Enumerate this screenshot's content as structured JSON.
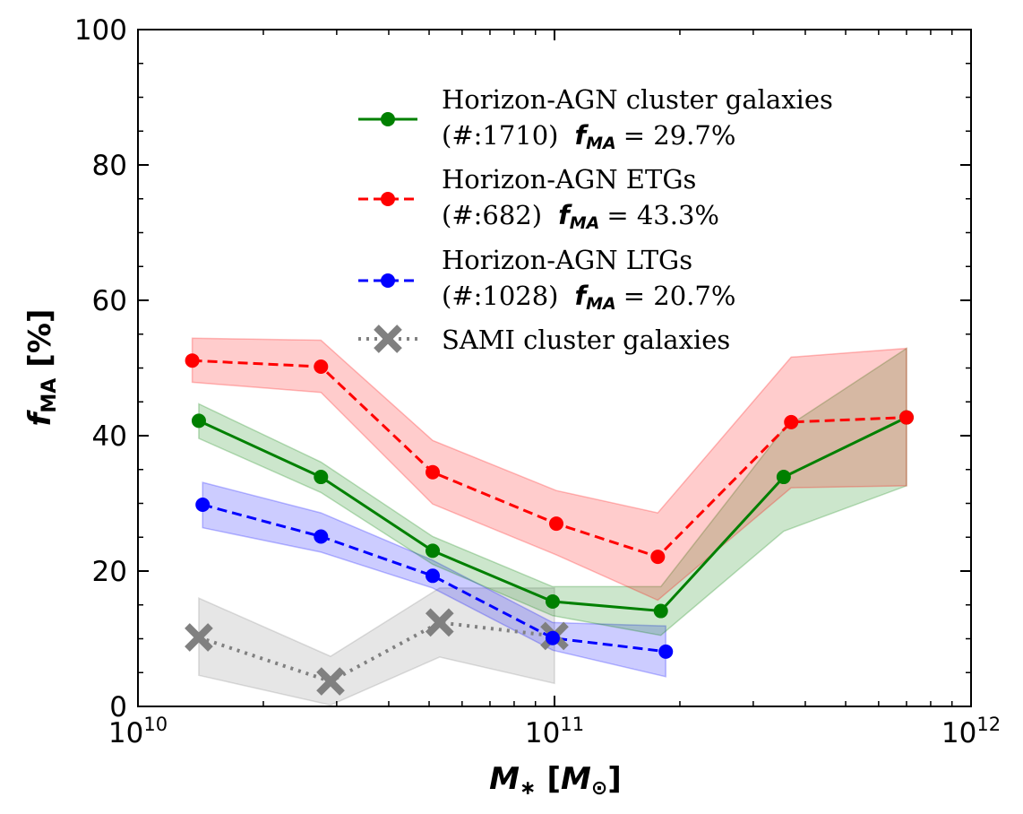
{
  "chart_data": {
    "type": "line",
    "xscale": "log",
    "xlim": [
      10000000000,
      1000000000000
    ],
    "ylim": [
      0,
      100
    ],
    "xlabel": {
      "main": "M",
      "sub1": "∗",
      "open": "[",
      "unit": "M",
      "sub2": "⊙",
      "close": "]"
    },
    "ylabel": {
      "main": "f",
      "sub": "MA",
      "unit": "[%]"
    },
    "x_ticks": [
      {
        "value": 10000000000,
        "base": "10",
        "exp": "10"
      },
      {
        "value": 100000000000,
        "base": "10",
        "exp": "11"
      },
      {
        "value": 1000000000000,
        "base": "10",
        "exp": "12"
      }
    ],
    "y_ticks": [
      0,
      20,
      40,
      60,
      80,
      100
    ],
    "series": [
      {
        "name": "Horizon-AGN cluster galaxies",
        "count_label": "(#:1710)",
        "fraction_label": "f",
        "fraction_sub": "MA",
        "fraction_value": "= 29.7%",
        "color": "#008000",
        "fill": "#008000",
        "style": "solid",
        "marker": "circle",
        "x": [
          14000000000,
          27500000000,
          51000000000,
          99000000000,
          180000000000,
          355000000000,
          700000000000
        ],
        "y": [
          42.2,
          33.9,
          23.0,
          15.5,
          14.1,
          33.9,
          42.7
        ],
        "lower": [
          39.6,
          31.6,
          21.0,
          13.4,
          10.5,
          25.9,
          32.6
        ],
        "upper": [
          44.7,
          36.1,
          25.1,
          17.7,
          17.7,
          41.0,
          52.9
        ]
      },
      {
        "name": "Horizon-AGN ETGs",
        "count_label": "(#:682)",
        "fraction_label": "f",
        "fraction_sub": "MA",
        "fraction_value": "= 43.3%",
        "color": "#ff0000",
        "fill": "#ff0000",
        "style": "dashed",
        "marker": "circle",
        "x": [
          13500000000,
          27500000000,
          51000000000,
          101000000000,
          177000000000,
          370000000000,
          700000000000
        ],
        "y": [
          51.1,
          50.2,
          34.6,
          27.0,
          22.1,
          42.0,
          42.7
        ],
        "lower": [
          47.9,
          46.4,
          29.9,
          22.4,
          15.7,
          32.3,
          32.6
        ],
        "upper": [
          54.4,
          54.1,
          39.3,
          31.9,
          28.6,
          51.6,
          52.9
        ]
      },
      {
        "name": "Horizon-AGN LTGs",
        "count_label": "(#:1028)",
        "fraction_label": "f",
        "fraction_sub": "MA",
        "fraction_value": "= 20.7%",
        "color": "#0000ff",
        "fill": "#0000ff",
        "style": "dashed",
        "marker": "circle",
        "x": [
          14300000000,
          27500000000,
          51000000000,
          99000000000,
          185000000000
        ],
        "y": [
          29.8,
          25.1,
          19.3,
          10.1,
          8.1
        ],
        "lower": [
          26.4,
          22.8,
          17.5,
          8.3,
          4.4
        ],
        "upper": [
          33.1,
          28.6,
          21.6,
          12.4,
          11.9
        ]
      },
      {
        "name": "SAMI cluster galaxies",
        "count_label": "",
        "fraction_label": "",
        "fraction_sub": "",
        "fraction_value": "",
        "color": "#808080",
        "fill": "#808080",
        "style": "dotted",
        "marker": "x",
        "x": [
          14000000000,
          29000000000,
          53000000000,
          100000000000
        ],
        "y": [
          10.2,
          3.7,
          12.4,
          10.4
        ],
        "lower": [
          4.6,
          0.2,
          7.3,
          3.4
        ],
        "upper": [
          16.0,
          7.4,
          17.5,
          17.5
        ]
      }
    ]
  }
}
